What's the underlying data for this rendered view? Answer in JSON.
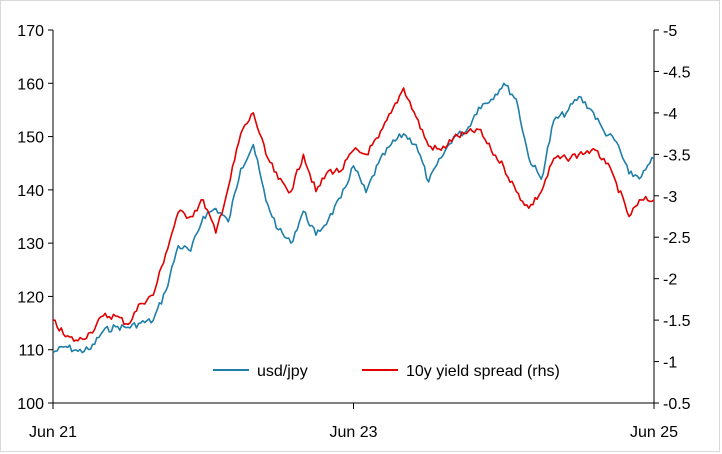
{
  "chart_data": {
    "type": "line",
    "x_ticks": [
      "Jun 21",
      "Jun 23",
      "Jun 25"
    ],
    "x_range": [
      "2021-06",
      "2025-06"
    ],
    "y_left": {
      "ticks": [
        100,
        110,
        120,
        130,
        140,
        150,
        160,
        170
      ],
      "range": [
        100,
        170
      ]
    },
    "y_right": {
      "ticks": [
        "-0.5",
        "-1",
        "-1.5",
        "-2",
        "-2.5",
        "-3",
        "-3.5",
        "-4",
        "-4.5",
        "-5"
      ],
      "range": [
        -0.5,
        -5
      ]
    },
    "grid": false,
    "legend_position": "bottom-center",
    "series": [
      {
        "name": "usd/jpy",
        "axis": "left",
        "color": "#1f7fa8",
        "x": [
          "2021-06",
          "2021-07",
          "2021-08",
          "2021-09",
          "2021-10",
          "2021-11",
          "2021-12",
          "2022-01",
          "2022-02",
          "2022-03",
          "2022-04",
          "2022-05",
          "2022-06",
          "2022-07",
          "2022-08",
          "2022-09",
          "2022-10",
          "2022-11",
          "2022-12",
          "2023-01",
          "2023-02",
          "2023-03",
          "2023-04",
          "2023-05",
          "2023-06",
          "2023-07",
          "2023-08",
          "2023-09",
          "2023-10",
          "2023-11",
          "2023-12",
          "2024-01",
          "2024-02",
          "2024-03",
          "2024-04",
          "2024-05",
          "2024-06",
          "2024-07",
          "2024-08",
          "2024-09",
          "2024-10",
          "2024-11",
          "2024-12",
          "2025-01",
          "2025-02",
          "2025-03",
          "2025-04",
          "2025-05",
          "2025-06"
        ],
        "values": [
          109.5,
          110.6,
          109.7,
          110.1,
          113.5,
          114.3,
          114.2,
          115.0,
          115.5,
          121.0,
          129.5,
          128.5,
          135.0,
          136.5,
          134.0,
          144.0,
          148.5,
          138.0,
          132.5,
          130.0,
          136.0,
          131.5,
          134.5,
          138.5,
          144.5,
          139.5,
          145.0,
          148.5,
          150.5,
          148.5,
          141.5,
          146.0,
          150.0,
          151.0,
          155.5,
          157.0,
          160.0,
          157.0,
          146.0,
          142.0,
          153.0,
          154.5,
          157.5,
          155.0,
          151.0,
          149.0,
          143.0,
          142.5,
          146.0
        ]
      },
      {
        "name": "10y yield spread (rhs)",
        "axis": "right",
        "color": "#e00000",
        "x": [
          "2021-06",
          "2021-07",
          "2021-08",
          "2021-09",
          "2021-10",
          "2021-11",
          "2021-12",
          "2022-01",
          "2022-02",
          "2022-03",
          "2022-04",
          "2022-05",
          "2022-06",
          "2022-07",
          "2022-08",
          "2022-09",
          "2022-10",
          "2022-11",
          "2022-12",
          "2023-01",
          "2023-02",
          "2023-03",
          "2023-04",
          "2023-05",
          "2023-06",
          "2023-07",
          "2023-08",
          "2023-09",
          "2023-10",
          "2023-11",
          "2023-12",
          "2024-01",
          "2024-02",
          "2024-03",
          "2024-04",
          "2024-05",
          "2024-06",
          "2024-07",
          "2024-08",
          "2024-09",
          "2024-10",
          "2024-11",
          "2024-12",
          "2025-01",
          "2025-02",
          "2025-03",
          "2025-04",
          "2025-05",
          "2025-06"
        ],
        "values": [
          -1.5,
          -1.3,
          -1.25,
          -1.35,
          -1.55,
          -1.55,
          -1.45,
          -1.7,
          -1.8,
          -2.3,
          -2.8,
          -2.75,
          -2.95,
          -2.55,
          -3.1,
          -3.75,
          -4.0,
          -3.5,
          -3.2,
          -3.05,
          -3.5,
          -3.05,
          -3.3,
          -3.3,
          -3.55,
          -3.5,
          -3.7,
          -4.0,
          -4.3,
          -3.95,
          -3.6,
          -3.55,
          -3.7,
          -3.75,
          -3.8,
          -3.55,
          -3.35,
          -3.05,
          -2.85,
          -3.05,
          -3.45,
          -3.45,
          -3.5,
          -3.55,
          -3.45,
          -3.15,
          -2.75,
          -2.95,
          -2.95
        ]
      }
    ]
  }
}
